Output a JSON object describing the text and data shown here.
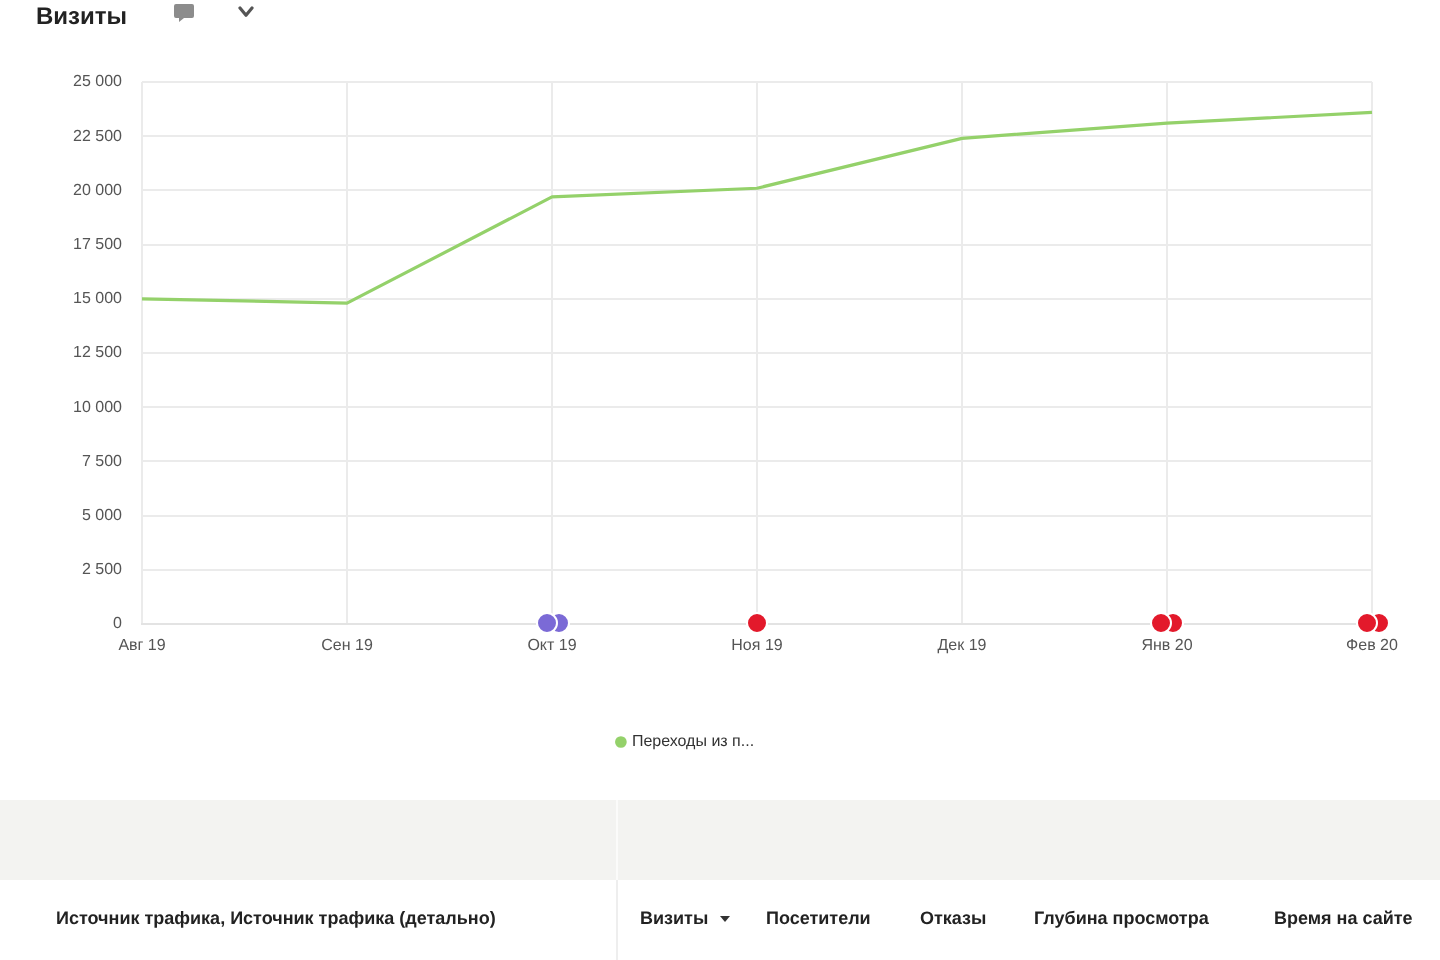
{
  "chart_data": {
    "type": "line",
    "title": "Визиты",
    "categories": [
      "Авг 19",
      "Сен 19",
      "Окт 19",
      "Ноя 19",
      "Дек 19",
      "Янв 20",
      "Фев 20"
    ],
    "series": [
      {
        "name": "Переходы из п...",
        "color": "#94d16a",
        "values": [
          15000,
          14800,
          19700,
          20100,
          22400,
          23100,
          23600
        ]
      }
    ],
    "ylim": [
      0,
      25000
    ],
    "yticks": [
      0,
      {
        "value": 2500,
        "label": "2 500"
      },
      {
        "value": 5000,
        "label": "5 000"
      },
      {
        "value": 7500,
        "label": "7 500"
      },
      {
        "value": 10000,
        "label": "10 000"
      },
      {
        "value": 12500,
        "label": "12 500"
      },
      {
        "value": 15000,
        "label": "15 000"
      },
      {
        "value": 17500,
        "label": "17 500"
      },
      {
        "value": 20000,
        "label": "20 000"
      },
      {
        "value": 22500,
        "label": "22 500"
      },
      {
        "value": 25000,
        "label": "25 000"
      }
    ],
    "grid": true,
    "legend": "bottom",
    "marker": "none",
    "annotations": [
      "Источник трафика, Источник трафика (детально)",
      "Визиты",
      "Посетители",
      "Отказы",
      "Глубина просмотра",
      "Время на сайте"
    ]
  }
}
